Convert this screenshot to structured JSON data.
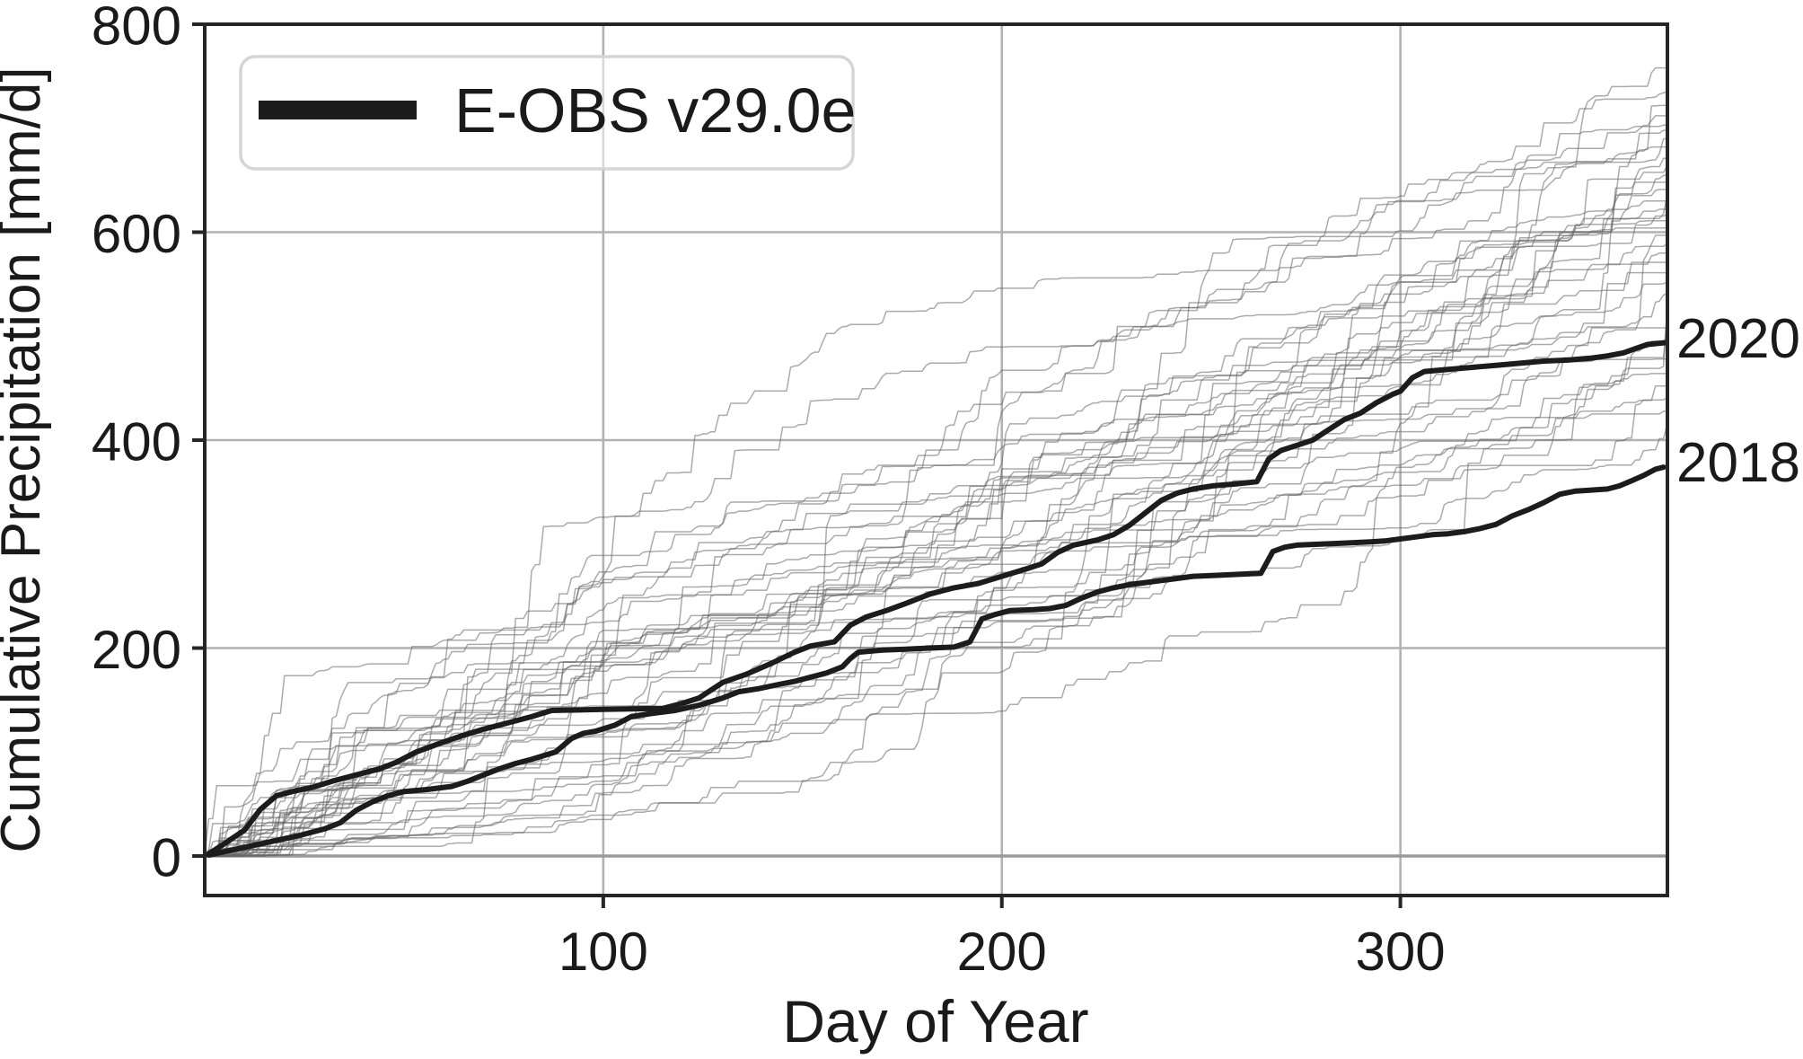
{
  "chart_data": {
    "type": "line",
    "title": "",
    "xlabel": "Day of Year",
    "ylabel": "Cumulative Precipitation [mm/d]",
    "xlim": [
      0,
      367
    ],
    "ylim": [
      -38,
      800
    ],
    "xticks": [
      100,
      200,
      300
    ],
    "yticks": [
      0,
      200,
      400,
      600,
      800
    ],
    "grid": true,
    "legend": {
      "label": "E-OBS v29.0e",
      "position": "upper-left"
    },
    "annotations": [
      {
        "text": "2020",
        "value": 497
      },
      {
        "text": "2018",
        "value": 378
      }
    ],
    "series": [
      {
        "name": "2020",
        "role": "highlight",
        "color": "#1c1c1c",
        "line_width": 6,
        "points": [
          [
            1,
            2
          ],
          [
            5,
            12
          ],
          [
            10,
            25
          ],
          [
            14,
            45
          ],
          [
            18,
            58
          ],
          [
            22,
            62
          ],
          [
            27,
            66
          ],
          [
            32,
            72
          ],
          [
            38,
            78
          ],
          [
            44,
            84
          ],
          [
            48,
            90
          ],
          [
            53,
            100
          ],
          [
            58,
            107
          ],
          [
            64,
            115
          ],
          [
            70,
            122
          ],
          [
            76,
            128
          ],
          [
            82,
            134
          ],
          [
            87,
            140
          ],
          [
            100,
            141
          ],
          [
            115,
            142
          ],
          [
            120,
            147
          ],
          [
            124,
            152
          ],
          [
            130,
            167
          ],
          [
            136,
            175
          ],
          [
            142,
            185
          ],
          [
            148,
            196
          ],
          [
            152,
            202
          ],
          [
            158,
            206
          ],
          [
            162,
            222
          ],
          [
            166,
            230
          ],
          [
            171,
            236
          ],
          [
            176,
            243
          ],
          [
            182,
            252
          ],
          [
            188,
            258
          ],
          [
            194,
            262
          ],
          [
            200,
            269
          ],
          [
            206,
            276
          ],
          [
            210,
            281
          ],
          [
            214,
            292
          ],
          [
            218,
            299
          ],
          [
            224,
            304
          ],
          [
            228,
            309
          ],
          [
            232,
            318
          ],
          [
            236,
            330
          ],
          [
            240,
            342
          ],
          [
            244,
            349
          ],
          [
            248,
            353
          ],
          [
            253,
            356
          ],
          [
            259,
            358
          ],
          [
            264,
            360
          ],
          [
            267,
            382
          ],
          [
            270,
            390
          ],
          [
            274,
            395
          ],
          [
            278,
            400
          ],
          [
            282,
            410
          ],
          [
            286,
            420
          ],
          [
            290,
            426
          ],
          [
            294,
            436
          ],
          [
            298,
            444
          ],
          [
            300,
            447
          ],
          [
            303,
            460
          ],
          [
            306,
            466
          ],
          [
            312,
            468
          ],
          [
            318,
            470
          ],
          [
            324,
            472
          ],
          [
            330,
            474
          ],
          [
            336,
            476
          ],
          [
            342,
            477
          ],
          [
            348,
            479
          ],
          [
            352,
            481
          ],
          [
            356,
            484
          ],
          [
            359,
            488
          ],
          [
            362,
            492
          ],
          [
            367,
            494
          ]
        ]
      },
      {
        "name": "2018",
        "role": "highlight",
        "color": "#1c1c1c",
        "line_width": 6,
        "points": [
          [
            1,
            1
          ],
          [
            6,
            5
          ],
          [
            12,
            10
          ],
          [
            18,
            15
          ],
          [
            24,
            20
          ],
          [
            30,
            26
          ],
          [
            34,
            32
          ],
          [
            38,
            44
          ],
          [
            42,
            52
          ],
          [
            46,
            58
          ],
          [
            50,
            62
          ],
          [
            56,
            64
          ],
          [
            62,
            67
          ],
          [
            66,
            72
          ],
          [
            70,
            78
          ],
          [
            74,
            84
          ],
          [
            78,
            89
          ],
          [
            82,
            93
          ],
          [
            88,
            100
          ],
          [
            92,
            113
          ],
          [
            95,
            118
          ],
          [
            98,
            120
          ],
          [
            103,
            126
          ],
          [
            107,
            134
          ],
          [
            112,
            137
          ],
          [
            118,
            140
          ],
          [
            124,
            145
          ],
          [
            130,
            152
          ],
          [
            134,
            158
          ],
          [
            139,
            161
          ],
          [
            144,
            165
          ],
          [
            148,
            168
          ],
          [
            152,
            172
          ],
          [
            156,
            176
          ],
          [
            160,
            182
          ],
          [
            162,
            190
          ],
          [
            164,
            196
          ],
          [
            170,
            198
          ],
          [
            176,
            199
          ],
          [
            182,
            200
          ],
          [
            188,
            201
          ],
          [
            192,
            206
          ],
          [
            195,
            228
          ],
          [
            198,
            232
          ],
          [
            202,
            236
          ],
          [
            208,
            237
          ],
          [
            212,
            238
          ],
          [
            216,
            241
          ],
          [
            220,
            248
          ],
          [
            224,
            254
          ],
          [
            228,
            258
          ],
          [
            232,
            261
          ],
          [
            236,
            263
          ],
          [
            240,
            265
          ],
          [
            244,
            267
          ],
          [
            248,
            269
          ],
          [
            254,
            270
          ],
          [
            260,
            271
          ],
          [
            265,
            272
          ],
          [
            268,
            293
          ],
          [
            271,
            297
          ],
          [
            274,
            299
          ],
          [
            280,
            300
          ],
          [
            286,
            301
          ],
          [
            292,
            302
          ],
          [
            296,
            303
          ],
          [
            300,
            305
          ],
          [
            304,
            307
          ],
          [
            308,
            309
          ],
          [
            312,
            310
          ],
          [
            316,
            312
          ],
          [
            320,
            315
          ],
          [
            324,
            319
          ],
          [
            328,
            327
          ],
          [
            332,
            333
          ],
          [
            336,
            340
          ],
          [
            340,
            348
          ],
          [
            344,
            351
          ],
          [
            348,
            352
          ],
          [
            352,
            353
          ],
          [
            355,
            356
          ],
          [
            358,
            361
          ],
          [
            361,
            366
          ],
          [
            364,
            372
          ],
          [
            366,
            374
          ]
        ]
      }
    ],
    "ensemble": {
      "role": "context-years",
      "color": "#666666",
      "opacity": 0.55,
      "line_width": 1.5,
      "end_totals": [
        758,
        735,
        722,
        712,
        703,
        698,
        690,
        682,
        671,
        664,
        655,
        648,
        641,
        637,
        630,
        622,
        617,
        611,
        604,
        597,
        589,
        580,
        571,
        561,
        552,
        541,
        532,
        521,
        508,
        495,
        478,
        464,
        452,
        441,
        428,
        416
      ],
      "seeds": [
        11,
        23,
        37,
        41,
        53,
        67,
        71,
        83,
        97,
        101,
        113,
        127,
        131,
        139,
        149,
        151,
        163,
        173,
        181,
        191,
        193,
        199,
        211,
        223,
        227,
        229,
        233,
        239,
        241,
        251,
        257,
        263,
        269,
        271,
        277,
        281
      ]
    },
    "colors": {
      "grid": "#b2b2b2",
      "zero_line": "#9a9a9a",
      "spine": "#262626",
      "text": "#1a1a1a",
      "legend_border": "#d5d5d5",
      "legend_fill": "#ffffff",
      "swatch": "#1c1c1c"
    }
  }
}
